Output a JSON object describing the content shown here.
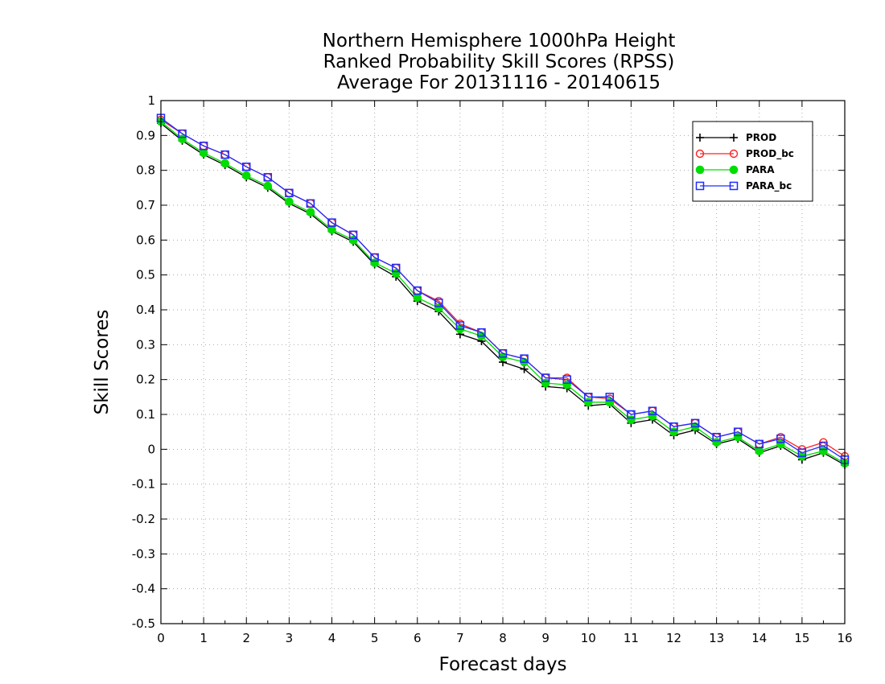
{
  "chart_data": {
    "type": "line",
    "title_lines": [
      "Northern Hemisphere 1000hPa Height",
      "Ranked Probability Skill Scores (RPSS)",
      "Average For 20131116 - 20140615"
    ],
    "xlabel": "Forecast days",
    "ylabel": "Skill Scores",
    "xlim": [
      0,
      16
    ],
    "ylim": [
      -0.5,
      1
    ],
    "xticks": [
      "0",
      "1",
      "2",
      "3",
      "4",
      "5",
      "6",
      "7",
      "8",
      "9",
      "10",
      "11",
      "12",
      "13",
      "14",
      "15",
      "16"
    ],
    "yticks": [
      "-0.5",
      "-0.4",
      "-0.3",
      "-0.2",
      "-0.1",
      "0",
      "0.1",
      "0.2",
      "0.3",
      "0.4",
      "0.5",
      "0.6",
      "0.7",
      "0.8",
      "0.9",
      "1"
    ],
    "grid": true,
    "legend_position": "top-right",
    "x": [
      0,
      0.5,
      1,
      1.5,
      2,
      2.5,
      3,
      3.5,
      4,
      4.5,
      5,
      5.5,
      6,
      6.5,
      7,
      7.5,
      8,
      8.5,
      9,
      9.5,
      10,
      10.5,
      11,
      11.5,
      12,
      12.5,
      13,
      13.5,
      14,
      14.5,
      15,
      15.5,
      16
    ],
    "series": [
      {
        "name": "PROD",
        "color": "#000000",
        "marker": "plus",
        "values": [
          0.935,
          0.885,
          0.845,
          0.815,
          0.78,
          0.75,
          0.705,
          0.675,
          0.625,
          0.595,
          0.53,
          0.495,
          0.425,
          0.395,
          0.33,
          0.31,
          0.25,
          0.23,
          0.18,
          0.175,
          0.125,
          0.13,
          0.075,
          0.085,
          0.04,
          0.055,
          0.015,
          0.03,
          -0.01,
          0.01,
          -0.03,
          -0.01,
          -0.045
        ]
      },
      {
        "name": "PROD_bc",
        "color": "#ff2020",
        "marker": "open-circle",
        "values": [
          0.945,
          0.905,
          0.87,
          0.845,
          0.81,
          0.78,
          0.735,
          0.705,
          0.65,
          0.615,
          0.55,
          0.52,
          0.455,
          0.425,
          0.36,
          0.335,
          0.275,
          0.26,
          0.205,
          0.205,
          0.15,
          0.145,
          0.1,
          0.11,
          0.065,
          0.075,
          0.035,
          0.05,
          0.015,
          0.035,
          0,
          0.02,
          -0.02
        ]
      },
      {
        "name": "PARA",
        "color": "#00dd00",
        "marker": "filled-circle",
        "values": [
          0.94,
          0.89,
          0.85,
          0.82,
          0.785,
          0.755,
          0.71,
          0.68,
          0.63,
          0.6,
          0.535,
          0.505,
          0.435,
          0.405,
          0.345,
          0.325,
          0.265,
          0.25,
          0.19,
          0.185,
          0.135,
          0.135,
          0.085,
          0.095,
          0.05,
          0.065,
          0.02,
          0.035,
          -0.005,
          0.015,
          -0.02,
          -0.005,
          -0.04
        ]
      },
      {
        "name": "PARA_bc",
        "color": "#1e2cff",
        "marker": "open-square",
        "values": [
          0.95,
          0.905,
          0.87,
          0.845,
          0.81,
          0.78,
          0.735,
          0.705,
          0.65,
          0.615,
          0.55,
          0.52,
          0.455,
          0.42,
          0.355,
          0.335,
          0.275,
          0.26,
          0.205,
          0.2,
          0.15,
          0.15,
          0.1,
          0.11,
          0.065,
          0.075,
          0.035,
          0.05,
          0.015,
          0.03,
          -0.01,
          0.01,
          -0.03
        ]
      }
    ]
  }
}
